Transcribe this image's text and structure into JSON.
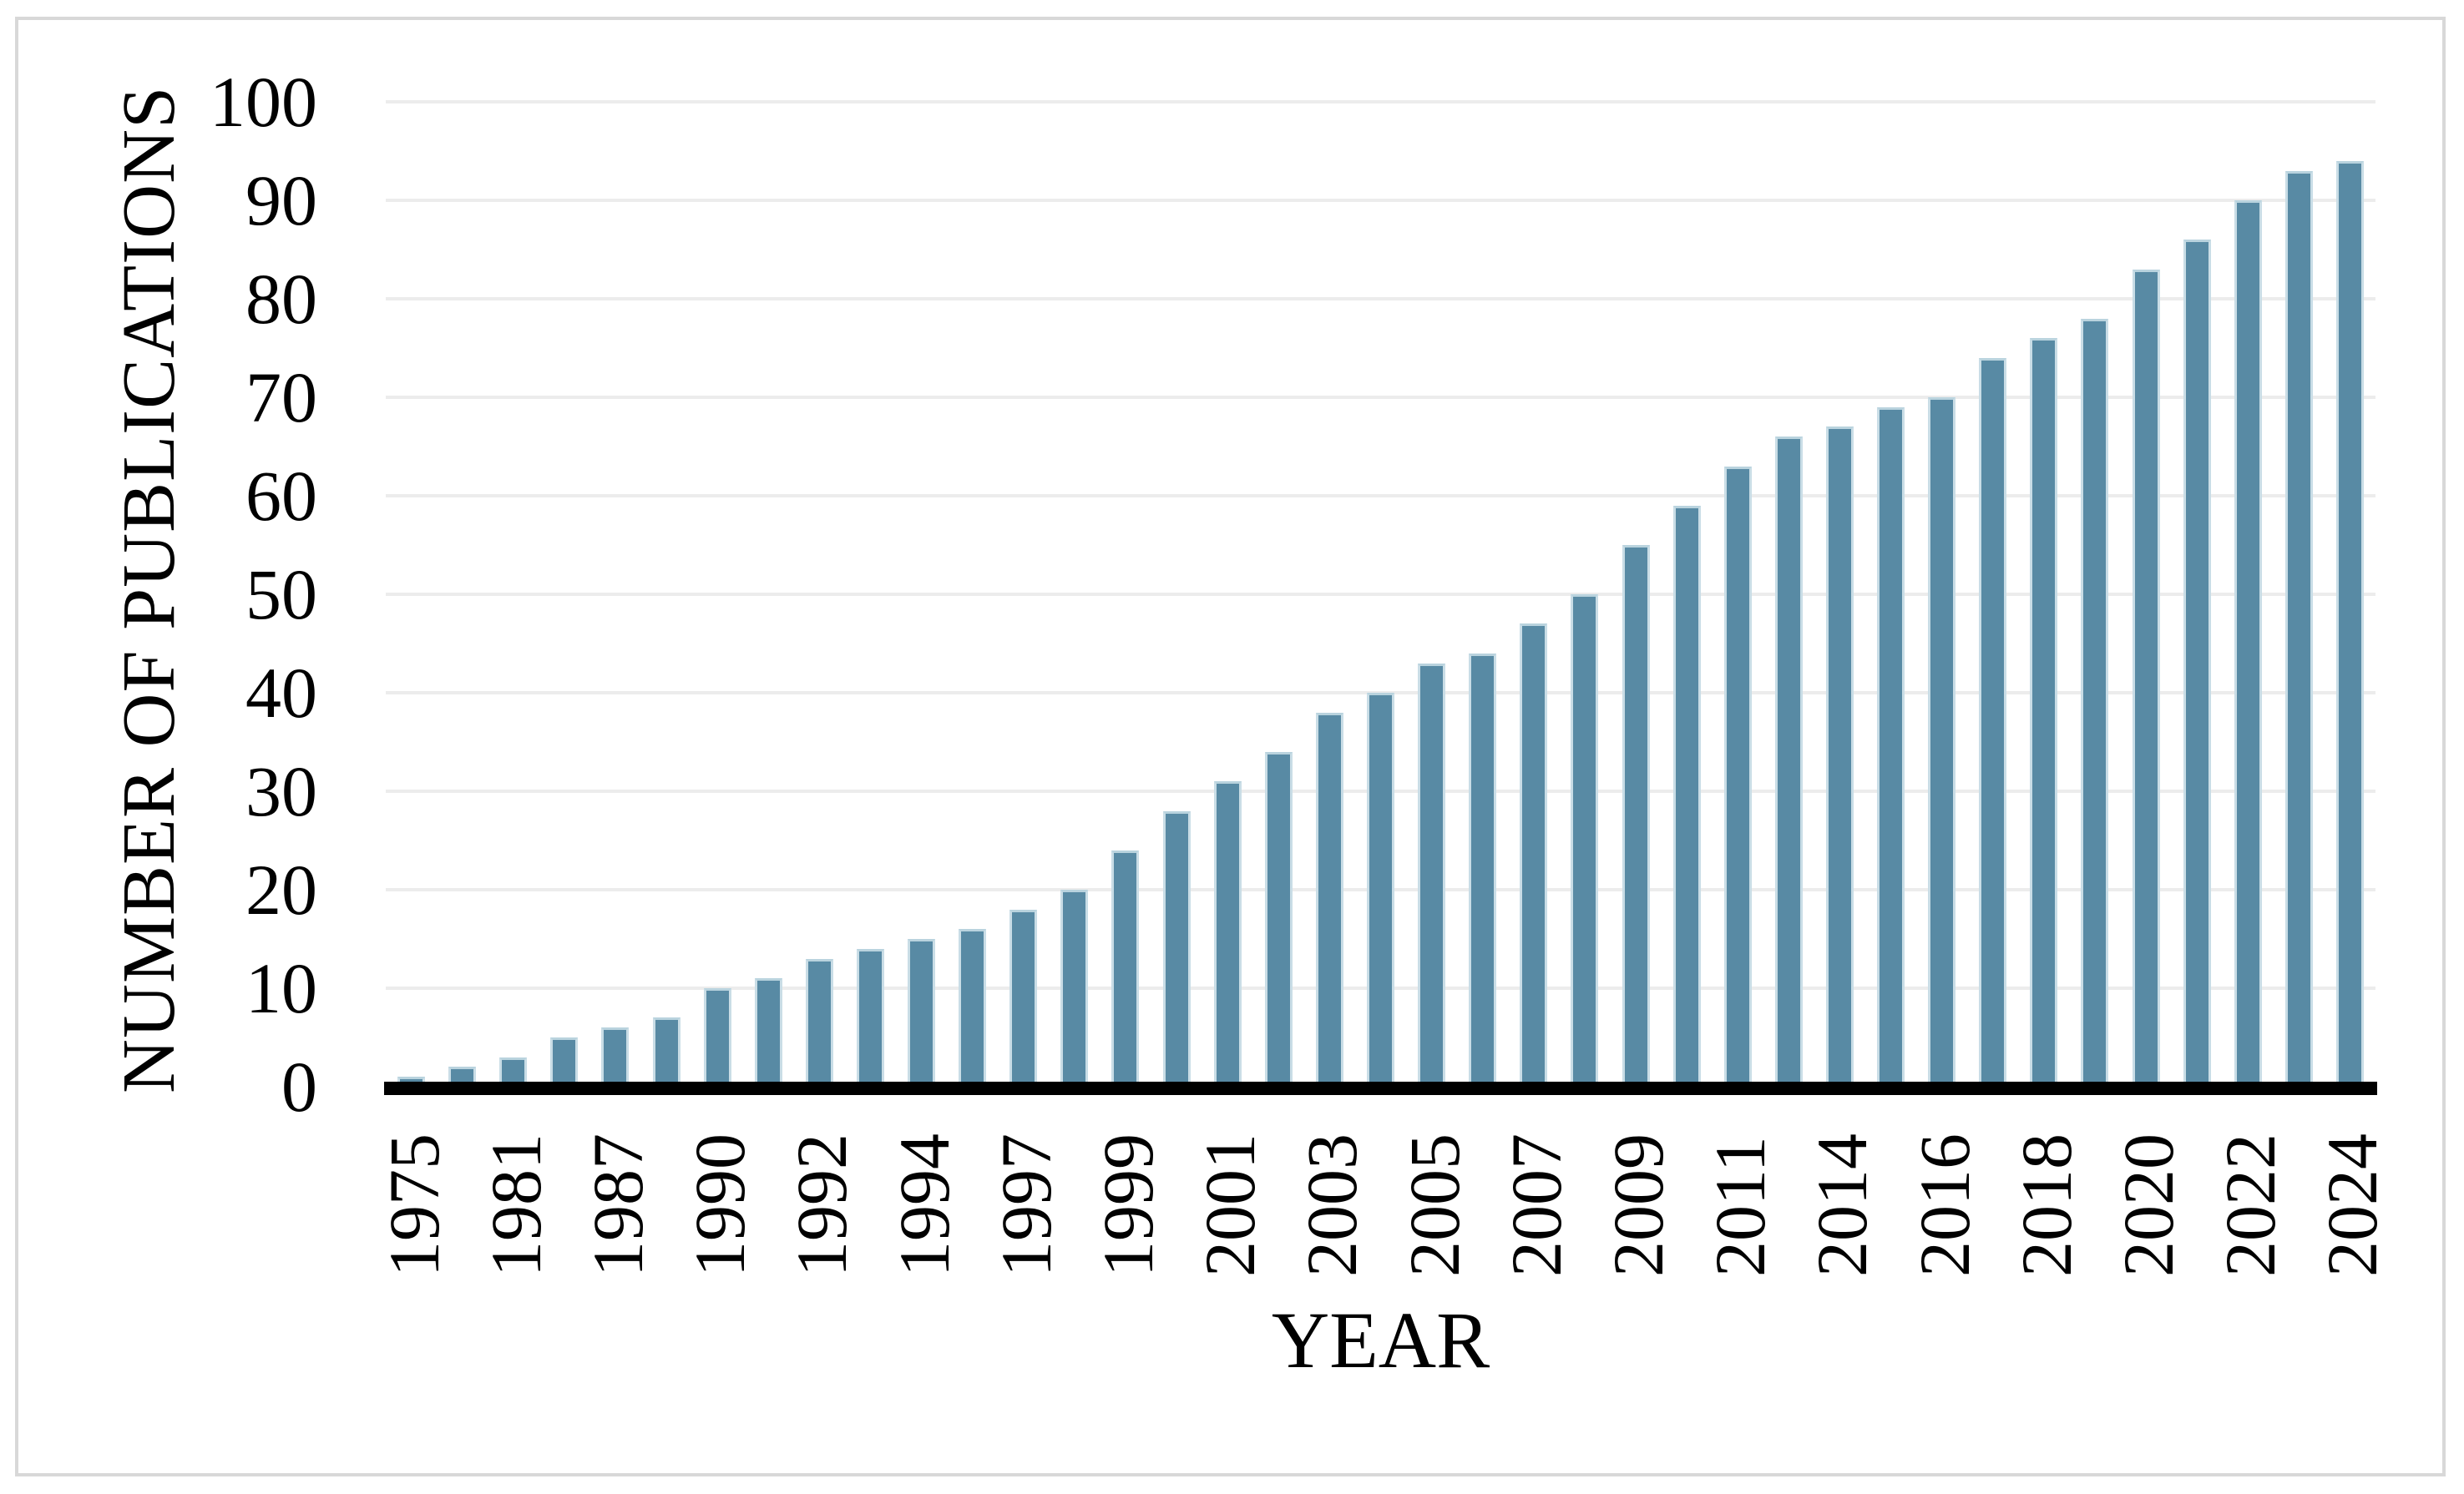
{
  "chart_data": {
    "type": "bar",
    "title": "",
    "xlabel": "YEAR",
    "ylabel": "NUMBER OF PUBLICATIONS",
    "ylim": [
      0,
      100
    ],
    "yticks": [
      0,
      10,
      20,
      30,
      40,
      50,
      60,
      70,
      80,
      90,
      100
    ],
    "grid": "horizontal",
    "legend_position": "none",
    "tick_label_rotation_deg": 90,
    "categories": [
      "1975",
      "",
      "1981",
      "",
      "1987",
      "",
      "1990",
      "",
      "1992",
      "",
      "1994",
      "",
      "1997",
      "",
      "1999",
      "",
      "2001",
      "",
      "2003",
      "",
      "2005",
      "",
      "2007",
      "",
      "2009",
      "",
      "2011",
      "",
      "2014",
      "",
      "2016",
      "",
      "2018",
      "",
      "2020",
      "",
      "2022",
      "",
      "2024"
    ],
    "values": [
      1,
      2,
      3,
      5,
      6,
      7,
      10,
      11,
      13,
      14,
      15,
      16,
      18,
      20,
      24,
      28,
      31,
      34,
      38,
      40,
      43,
      44,
      47,
      50,
      55,
      59,
      63,
      66,
      67,
      69,
      70,
      74,
      76,
      78,
      83,
      86,
      90,
      93,
      94
    ]
  },
  "colors": {
    "bar_fill": "#588aa4",
    "bar_edge": "#c9dde6",
    "gridline": "#ececec",
    "axis_line": "#000000",
    "text": "#000000",
    "frame_border": "#d8d8d8",
    "background": "#ffffff"
  }
}
